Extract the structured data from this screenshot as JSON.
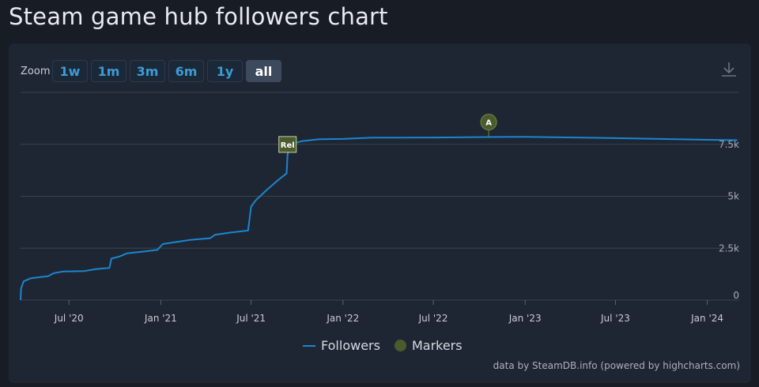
{
  "page": {
    "title": "Steam game hub followers chart"
  },
  "toolbar": {
    "zoom_label": "Zoom",
    "buttons": [
      "1w",
      "1m",
      "3m",
      "6m",
      "1y",
      "all"
    ],
    "active": "all"
  },
  "legend": {
    "followers": "Followers",
    "markers": "Markers"
  },
  "credits": "data by SteamDB.info (powered by highcharts.com)",
  "colors": {
    "line": "#1a86d0",
    "marker": "#4a5b2e",
    "marker_border": "#6f8a3d",
    "grid": "#3a4250"
  },
  "chart_data": {
    "type": "line",
    "title": "",
    "xlabel": "",
    "ylabel": "",
    "x_ticks": [
      "Jul '20",
      "Jan '21",
      "Jul '21",
      "Jan '22",
      "Jul '22",
      "Jan '23",
      "Jul '23",
      "Jan '24"
    ],
    "y_ticks": [
      "0",
      "2.5k",
      "5k",
      "7.5k"
    ],
    "ylim": [
      0,
      10000
    ],
    "xlim": [
      "2020-03-26",
      "2024-03-05"
    ],
    "grid": true,
    "series": [
      {
        "name": "Followers",
        "points": [
          [
            "2020-03-26",
            0
          ],
          [
            "2020-03-27",
            550
          ],
          [
            "2020-04-01",
            900
          ],
          [
            "2020-04-15",
            1050
          ],
          [
            "2020-05-01",
            1100
          ],
          [
            "2020-05-20",
            1150
          ],
          [
            "2020-06-01",
            1300
          ],
          [
            "2020-06-20",
            1380
          ],
          [
            "2020-08-01",
            1400
          ],
          [
            "2020-08-25",
            1500
          ],
          [
            "2020-09-20",
            1550
          ],
          [
            "2020-09-24",
            2000
          ],
          [
            "2020-10-10",
            2100
          ],
          [
            "2020-10-25",
            2250
          ],
          [
            "2020-12-01",
            2350
          ],
          [
            "2020-12-25",
            2420
          ],
          [
            "2021-01-05",
            2700
          ],
          [
            "2021-02-01",
            2800
          ],
          [
            "2021-03-01",
            2900
          ],
          [
            "2021-04-10",
            2980
          ],
          [
            "2021-04-20",
            3150
          ],
          [
            "2021-05-20",
            3250
          ],
          [
            "2021-06-25",
            3350
          ],
          [
            "2021-07-01",
            4500
          ],
          [
            "2021-07-10",
            4800
          ],
          [
            "2021-08-01",
            5300
          ],
          [
            "2021-08-25",
            5800
          ],
          [
            "2021-09-10",
            6100
          ],
          [
            "2021-09-12",
            7000
          ],
          [
            "2021-09-18",
            7500
          ],
          [
            "2021-10-10",
            7650
          ],
          [
            "2021-11-15",
            7750
          ],
          [
            "2022-01-01",
            7760
          ],
          [
            "2022-03-01",
            7820
          ],
          [
            "2022-07-01",
            7830
          ],
          [
            "2022-10-20",
            7850
          ],
          [
            "2023-01-01",
            7860
          ],
          [
            "2023-07-01",
            7800
          ],
          [
            "2024-01-01",
            7720
          ],
          [
            "2024-03-01",
            7700
          ]
        ]
      }
    ],
    "markers": [
      {
        "label": "Rel",
        "date": "2021-09-12",
        "y": 7000,
        "shape": "square"
      },
      {
        "label": "A",
        "date": "2022-10-20",
        "y": 7850,
        "shape": "circle"
      }
    ],
    "legend_position": "bottom"
  }
}
